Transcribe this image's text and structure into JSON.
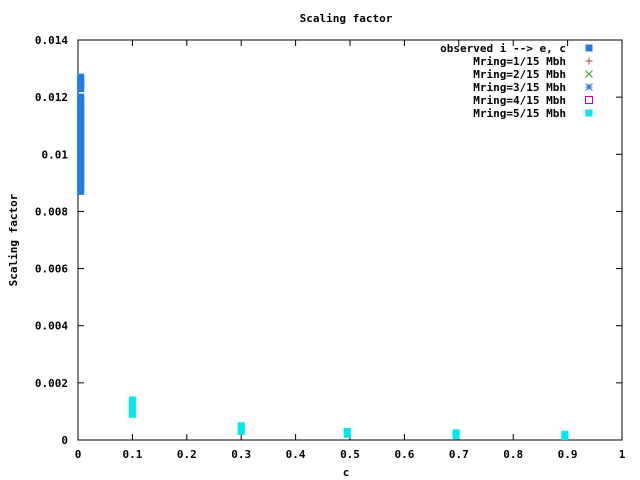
{
  "chart_data": {
    "type": "scatter",
    "title": "Scaling factor",
    "xlabel": "c",
    "ylabel": "Scaling factor",
    "xlim": [
      0,
      1
    ],
    "ylim": [
      0,
      0.014
    ],
    "xticks": [
      "0",
      "0.1",
      "0.2",
      "0.3",
      "0.4",
      "0.5",
      "0.6",
      "0.7",
      "0.8",
      "0.9",
      "1"
    ],
    "yticks": [
      "0",
      "0.002",
      "0.004",
      "0.006",
      "0.008",
      "0.01",
      "0.012",
      "0.014"
    ],
    "grid": false,
    "legend_position": "top-right",
    "series": [
      {
        "name": "observed i --> e, c",
        "marker": "filled-square",
        "color": "#1e7be8",
        "points": [
          {
            "x": 0.005,
            "y": 0.0087
          },
          {
            "x": 0.005,
            "y": 0.0088
          },
          {
            "x": 0.005,
            "y": 0.0089
          },
          {
            "x": 0.005,
            "y": 0.009
          },
          {
            "x": 0.005,
            "y": 0.0091
          },
          {
            "x": 0.005,
            "y": 0.0092
          },
          {
            "x": 0.005,
            "y": 0.0093
          },
          {
            "x": 0.005,
            "y": 0.0094
          },
          {
            "x": 0.005,
            "y": 0.0095
          },
          {
            "x": 0.005,
            "y": 0.0096
          },
          {
            "x": 0.005,
            "y": 0.0097
          },
          {
            "x": 0.005,
            "y": 0.0098
          },
          {
            "x": 0.005,
            "y": 0.0099
          },
          {
            "x": 0.005,
            "y": 0.01
          },
          {
            "x": 0.005,
            "y": 0.0101
          },
          {
            "x": 0.005,
            "y": 0.0102
          },
          {
            "x": 0.005,
            "y": 0.0103
          },
          {
            "x": 0.005,
            "y": 0.0104
          },
          {
            "x": 0.005,
            "y": 0.0105
          },
          {
            "x": 0.005,
            "y": 0.0106
          },
          {
            "x": 0.005,
            "y": 0.0107
          },
          {
            "x": 0.005,
            "y": 0.0108
          },
          {
            "x": 0.005,
            "y": 0.0109
          },
          {
            "x": 0.005,
            "y": 0.011
          },
          {
            "x": 0.005,
            "y": 0.0111
          },
          {
            "x": 0.005,
            "y": 0.0112
          },
          {
            "x": 0.005,
            "y": 0.0113
          },
          {
            "x": 0.005,
            "y": 0.0114
          },
          {
            "x": 0.005,
            "y": 0.0115
          },
          {
            "x": 0.005,
            "y": 0.0116
          },
          {
            "x": 0.005,
            "y": 0.0117
          },
          {
            "x": 0.005,
            "y": 0.0118
          },
          {
            "x": 0.005,
            "y": 0.0119
          },
          {
            "x": 0.005,
            "y": 0.012
          },
          {
            "x": 0.005,
            "y": 0.0123
          },
          {
            "x": 0.005,
            "y": 0.0124
          },
          {
            "x": 0.005,
            "y": 0.0125
          },
          {
            "x": 0.005,
            "y": 0.0126
          },
          {
            "x": 0.005,
            "y": 0.0127
          }
        ]
      },
      {
        "name": "Mring=1/15 Mbh",
        "marker": "plus",
        "color": "#a0522d",
        "points": []
      },
      {
        "name": "Mring=2/15 Mbh",
        "marker": "cross",
        "color": "#2ca02c",
        "points": []
      },
      {
        "name": "Mring=3/15 Mbh",
        "marker": "star",
        "color": "#1f77d0",
        "points": []
      },
      {
        "name": "Mring=4/15 Mbh",
        "marker": "open-square",
        "color": "#c000c0",
        "points": []
      },
      {
        "name": "Mring=5/15 Mbh",
        "marker": "filled-square",
        "color": "#00e8f0",
        "points": [
          {
            "x": 0.1,
            "y": 0.0009
          },
          {
            "x": 0.1,
            "y": 0.001
          },
          {
            "x": 0.1,
            "y": 0.0011
          },
          {
            "x": 0.1,
            "y": 0.0012
          },
          {
            "x": 0.1,
            "y": 0.0013
          },
          {
            "x": 0.1,
            "y": 0.0014
          },
          {
            "x": 0.3,
            "y": 0.0003
          },
          {
            "x": 0.3,
            "y": 0.0004
          },
          {
            "x": 0.3,
            "y": 0.0005
          },
          {
            "x": 0.495,
            "y": 0.0002
          },
          {
            "x": 0.495,
            "y": 0.0003
          },
          {
            "x": 0.695,
            "y": 0.00015
          },
          {
            "x": 0.695,
            "y": 0.00025
          },
          {
            "x": 0.895,
            "y": 0.00012
          },
          {
            "x": 0.895,
            "y": 0.0002
          }
        ]
      }
    ]
  }
}
